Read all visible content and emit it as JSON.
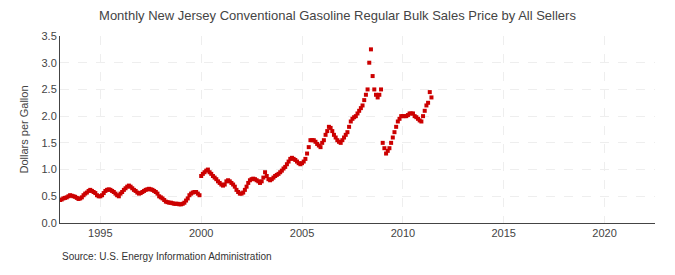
{
  "chart_data": {
    "type": "scatter",
    "title": "Monthly New Jersey Conventional Gasoline Regular Bulk Sales Price by All Sellers",
    "ylabel": "Dollars per Gallon",
    "annotations": [
      "Source: U.S. Energy Information Administration"
    ],
    "color": "#cc0000",
    "marker": "square",
    "grid": true,
    "xlim": [
      1993.0,
      2022.5
    ],
    "ylim": [
      0.0,
      3.5
    ],
    "xticks": [
      1995,
      2000,
      2005,
      2010,
      2015,
      2020
    ],
    "yticks": [
      {
        "value": 0.0,
        "label": "0.0"
      },
      0.5,
      {
        "value": 1.0,
        "label": "1.0"
      },
      1.5,
      {
        "value": 2.0,
        "label": "2.0"
      },
      2.5,
      {
        "value": 3.0,
        "label": "3.0"
      },
      3.5
    ],
    "x": [
      1993.0,
      1993.083,
      1993.167,
      1993.25,
      1993.333,
      1993.417,
      1993.5,
      1993.583,
      1993.667,
      1993.75,
      1993.833,
      1993.917,
      1994.0,
      1994.083,
      1994.167,
      1994.25,
      1994.333,
      1994.417,
      1994.5,
      1994.583,
      1994.667,
      1994.75,
      1994.833,
      1994.917,
      1995.0,
      1995.083,
      1995.167,
      1995.25,
      1995.333,
      1995.417,
      1995.5,
      1995.583,
      1995.667,
      1995.75,
      1995.833,
      1995.917,
      1996.0,
      1996.083,
      1996.167,
      1996.25,
      1996.333,
      1996.417,
      1996.5,
      1996.583,
      1996.667,
      1996.75,
      1996.833,
      1996.917,
      1997.0,
      1997.083,
      1997.167,
      1997.25,
      1997.333,
      1997.417,
      1997.5,
      1997.583,
      1997.667,
      1997.75,
      1997.833,
      1997.917,
      1998.0,
      1998.083,
      1998.167,
      1998.25,
      1998.333,
      1998.417,
      1998.5,
      1998.583,
      1998.667,
      1998.75,
      1998.833,
      1998.917,
      1999.0,
      1999.083,
      1999.167,
      1999.25,
      1999.333,
      1999.417,
      1999.5,
      1999.583,
      1999.667,
      1999.75,
      1999.833,
      1999.917,
      2000.0,
      2000.083,
      2000.167,
      2000.25,
      2000.333,
      2000.417,
      2000.5,
      2000.583,
      2000.667,
      2000.75,
      2000.833,
      2000.917,
      2001.0,
      2001.083,
      2001.167,
      2001.25,
      2001.333,
      2001.417,
      2001.5,
      2001.583,
      2001.667,
      2001.75,
      2001.833,
      2001.917,
      2002.0,
      2002.083,
      2002.167,
      2002.25,
      2002.333,
      2002.417,
      2002.5,
      2002.583,
      2002.667,
      2002.75,
      2002.833,
      2002.917,
      2003.0,
      2003.083,
      2003.167,
      2003.25,
      2003.333,
      2003.417,
      2003.5,
      2003.583,
      2003.667,
      2003.75,
      2003.833,
      2003.917,
      2004.0,
      2004.083,
      2004.167,
      2004.25,
      2004.333,
      2004.417,
      2004.5,
      2004.583,
      2004.667,
      2004.75,
      2004.833,
      2004.917,
      2005.0,
      2005.083,
      2005.167,
      2005.25,
      2005.333,
      2005.417,
      2005.5,
      2005.583,
      2005.667,
      2005.75,
      2005.833,
      2005.917,
      2006.0,
      2006.083,
      2006.167,
      2006.25,
      2006.333,
      2006.417,
      2006.5,
      2006.583,
      2006.667,
      2006.75,
      2006.833,
      2006.917,
      2007.0,
      2007.083,
      2007.167,
      2007.25,
      2007.333,
      2007.417,
      2007.5,
      2007.583,
      2007.667,
      2007.75,
      2007.833,
      2007.917,
      2008.0,
      2008.083,
      2008.167,
      2008.25,
      2008.333,
      2008.417,
      2008.5,
      2008.583,
      2008.667,
      2008.75,
      2008.833,
      2008.917,
      2009.0,
      2009.083,
      2009.167,
      2009.25,
      2009.333,
      2009.417,
      2009.5,
      2009.583,
      2009.667,
      2009.75,
      2009.833,
      2009.917,
      2010.0,
      2010.083,
      2010.167,
      2010.25,
      2010.333,
      2010.417,
      2010.5,
      2010.583,
      2010.667,
      2010.75,
      2010.833,
      2010.917,
      2011.0,
      2011.083,
      2011.167,
      2011.25,
      2011.333,
      2011.417
    ],
    "values": [
      0.43,
      0.44,
      0.46,
      0.47,
      0.48,
      0.5,
      0.52,
      0.51,
      0.5,
      0.49,
      0.47,
      0.45,
      0.46,
      0.48,
      0.52,
      0.55,
      0.57,
      0.6,
      0.62,
      0.6,
      0.58,
      0.56,
      0.52,
      0.5,
      0.5,
      0.52,
      0.56,
      0.6,
      0.62,
      0.63,
      0.62,
      0.6,
      0.58,
      0.55,
      0.52,
      0.5,
      0.55,
      0.58,
      0.62,
      0.65,
      0.68,
      0.7,
      0.68,
      0.65,
      0.62,
      0.6,
      0.57,
      0.55,
      0.56,
      0.58,
      0.6,
      0.62,
      0.63,
      0.64,
      0.63,
      0.62,
      0.6,
      0.58,
      0.55,
      0.5,
      0.48,
      0.46,
      0.43,
      0.4,
      0.39,
      0.38,
      0.38,
      0.37,
      0.36,
      0.36,
      0.36,
      0.35,
      0.35,
      0.36,
      0.38,
      0.42,
      0.46,
      0.52,
      0.55,
      0.57,
      0.58,
      0.58,
      0.55,
      0.52,
      0.88,
      0.92,
      0.95,
      0.98,
      1.0,
      0.95,
      0.92,
      0.88,
      0.85,
      0.82,
      0.78,
      0.75,
      0.72,
      0.7,
      0.72,
      0.78,
      0.8,
      0.78,
      0.75,
      0.72,
      0.68,
      0.62,
      0.58,
      0.55,
      0.55,
      0.57,
      0.62,
      0.68,
      0.75,
      0.8,
      0.82,
      0.83,
      0.82,
      0.8,
      0.78,
      0.75,
      0.78,
      0.85,
      0.95,
      0.88,
      0.82,
      0.8,
      0.82,
      0.85,
      0.88,
      0.9,
      0.92,
      0.95,
      0.98,
      1.02,
      1.05,
      1.1,
      1.15,
      1.2,
      1.22,
      1.2,
      1.18,
      1.15,
      1.12,
      1.1,
      1.12,
      1.15,
      1.2,
      1.3,
      1.42,
      1.55,
      1.55,
      1.55,
      1.52,
      1.48,
      1.45,
      1.42,
      1.5,
      1.55,
      1.65,
      1.72,
      1.8,
      1.78,
      1.72,
      1.65,
      1.6,
      1.55,
      1.52,
      1.5,
      1.55,
      1.6,
      1.65,
      1.7,
      1.8,
      1.9,
      1.95,
      1.98,
      2.0,
      2.05,
      2.1,
      2.15,
      2.2,
      2.3,
      2.4,
      2.5,
      3.0,
      3.25,
      2.75,
      2.5,
      2.4,
      2.35,
      2.4,
      2.5,
      1.5,
      1.4,
      1.3,
      1.35,
      1.4,
      1.5,
      1.6,
      1.7,
      1.8,
      1.9,
      1.95,
      2.0,
      2.0,
      2.0,
      2.0,
      2.02,
      2.05,
      2.05,
      2.05,
      2.0,
      1.98,
      1.95,
      1.92,
      1.9,
      2.0,
      2.1,
      2.2,
      2.25,
      2.45,
      2.35
    ]
  }
}
